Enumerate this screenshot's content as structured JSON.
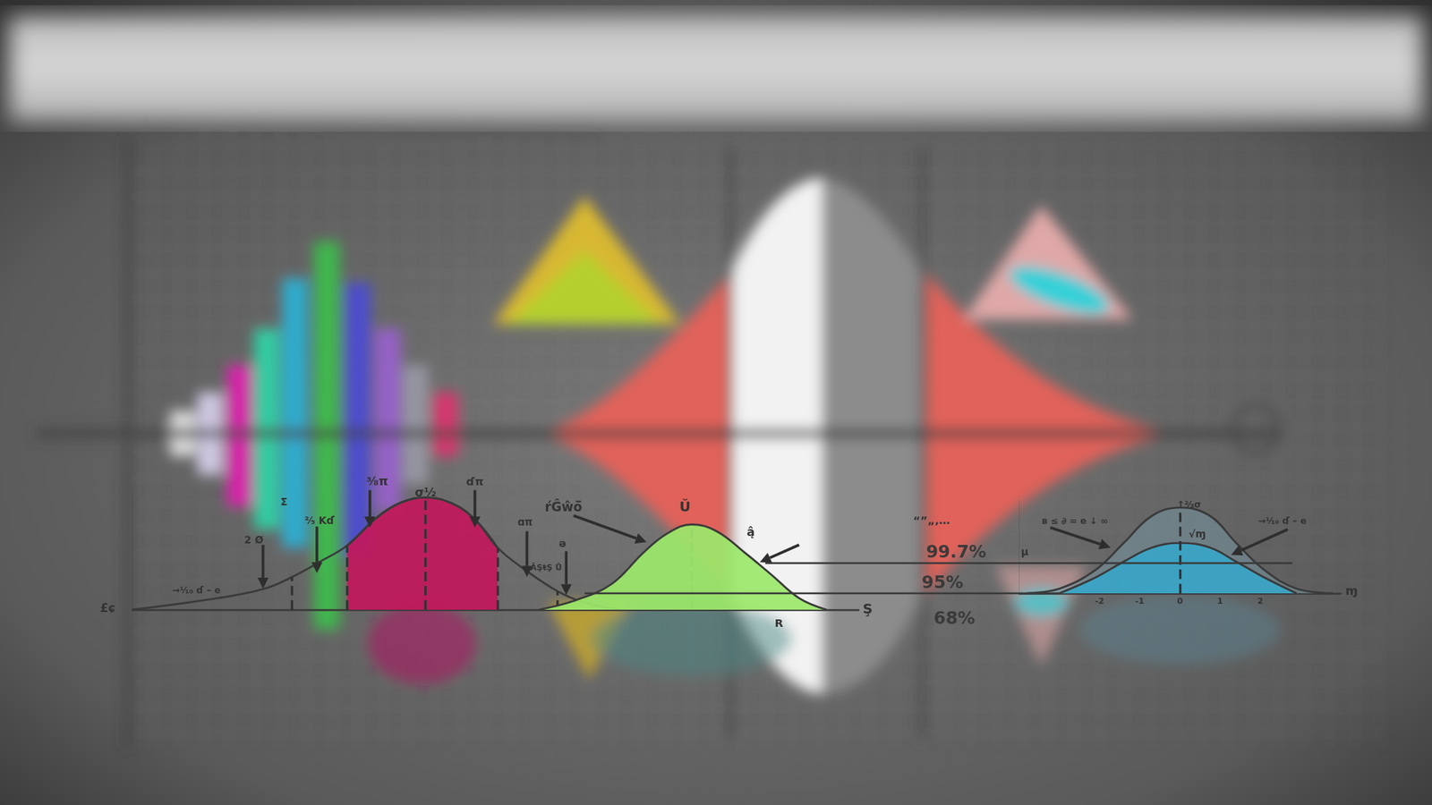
{
  "chart_data": [
    {
      "type": "line",
      "xlim": [
        0,
        100
      ],
      "ylim": [
        0,
        10
      ],
      "tick_labels": false,
      "grid": false,
      "series": [
        {
          "type": "area",
          "color": "#c2185b",
          "x": [
            29.6,
            31.5,
            33.3,
            35.2,
            37.1,
            40.3,
            44,
            47.2,
            50.3
          ],
          "values": [
            5.5,
            6.6,
            7.7,
            8.6,
            9.2,
            9.6,
            9.1,
            7.7,
            5.3
          ]
        },
        {
          "type": "line",
          "color": "#3a3a3a",
          "x": [
            0,
            11.9,
            18.2,
            22,
            25.8,
            29.6,
            33.3,
            37.1,
            40.3,
            44,
            47.2,
            50.3,
            54.1,
            58.5,
            62.3,
            67.3
          ],
          "values": [
            0,
            1,
            1.8,
            2.8,
            4.1,
            5.5,
            7.7,
            9.2,
            9.6,
            9.1,
            7.7,
            5.3,
            3.4,
            1.6,
            0.6,
            0
          ]
        },
        {
          "type": "area",
          "color": "#9be86a",
          "x": [
            56,
            61,
            66,
            70.4,
            73.6,
            77,
            80.5,
            84.3,
            88,
            91.8,
            95.6
          ],
          "values": [
            0,
            0.8,
            2.2,
            4.9,
            6.5,
            7.3,
            6.7,
            4.9,
            3,
            1,
            0
          ]
        }
      ],
      "dashed_lines": {
        "x": [
          22,
          29.6,
          40.3,
          50.3,
          58.5,
          77
        ],
        "y": [
          2.8,
          5.5,
          9.6,
          5.3,
          1.6,
          7.3
        ]
      },
      "annotations": [
        "£ɕ",
        "→¹⁄₁₀ ɗ – e",
        "2 Ø",
        "Σ",
        "²⁄₅ Kɗ",
        "³⁄₈π",
        "σ½",
        "ɗπ",
        "ɑπ",
        "ə",
        "ĀŞŧŞ Ů",
        "ŕĜŵŏ̈",
        "Ŭ",
        "ą̂",
        "R",
        "Ş",
        "“”„‚…",
        "99.7%",
        "µ",
        "95%",
        "68%"
      ]
    },
    {
      "type": "line",
      "xlim": [
        -4,
        4
      ],
      "ylim": [
        0,
        10
      ],
      "xticks": [
        -2,
        -1,
        0,
        1,
        2
      ],
      "tick_labels": "x",
      "grid": false,
      "series": [
        {
          "type": "area",
          "color": "#7895a3",
          "x": [
            -3.8,
            -3,
            -2.1,
            -1.4,
            -0.7,
            0,
            0.75,
            1.4,
            2.1,
            2.9,
            3.8
          ],
          "values": [
            0,
            0.5,
            2.5,
            5.4,
            8.3,
            9.2,
            8.3,
            5.4,
            2.5,
            0.5,
            0
          ]
        },
        {
          "type": "area",
          "color": "#3aa6c8",
          "x": [
            -3,
            -2.1,
            -1.4,
            -0.7,
            0,
            0.75,
            1.4,
            2.1,
            2.9
          ],
          "values": [
            0,
            1.7,
            3.4,
            4.9,
            5.4,
            4.9,
            3.4,
            1.7,
            0
          ]
        }
      ],
      "dashed_lines": {
        "x": [
          0
        ],
        "y": [
          9.2
        ]
      },
      "annotations": [
        "ʙ ≤ ∂ = e ↓ ∞",
        "↑²⁄₃σ",
        "√ɱ",
        "→¹⁄₁₀ ɗ – e",
        "ɱ"
      ]
    }
  ]
}
